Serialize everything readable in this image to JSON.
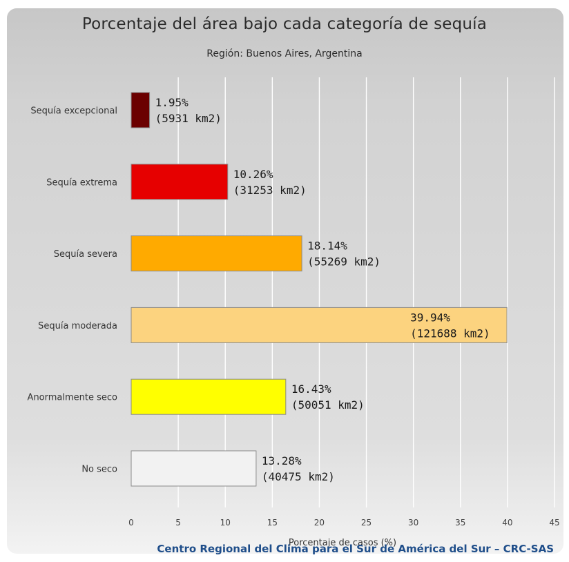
{
  "chart_data": {
    "type": "bar",
    "orientation": "horizontal",
    "title": "Porcentaje del área bajo cada categoría de sequía",
    "subtitle": "Región: Buenos Aires, Argentina",
    "xlabel": "Porcentaje de casos (%)",
    "ylabel": "",
    "xlim": [
      0,
      45
    ],
    "xticks": [
      0,
      5,
      10,
      15,
      20,
      25,
      30,
      35,
      40,
      45
    ],
    "grid": true,
    "categories": [
      "Sequía excepcional",
      "Sequía extrema",
      "Sequía severa",
      "Sequía moderada",
      "Anormalmente seco",
      "No seco"
    ],
    "values": [
      1.95,
      10.26,
      18.14,
      39.94,
      16.43,
      13.28
    ],
    "value_labels": [
      "1.95%",
      "10.26%",
      "18.14%",
      "39.94%",
      "16.43%",
      "13.28%"
    ],
    "area_labels": [
      "(5931 km2)",
      "(31253 km2)",
      "(55269 km2)",
      "(121688 km2)",
      "(50051 km2)",
      "(40475 km2)"
    ],
    "colors": [
      "#6b0000",
      "#e60000",
      "#ffaa00",
      "#fcd37f",
      "#ffff00",
      "#f2f2f2"
    ]
  },
  "footer": {
    "credit": "Centro Regional del Clima para el Sur de América del Sur – CRC-SAS"
  }
}
